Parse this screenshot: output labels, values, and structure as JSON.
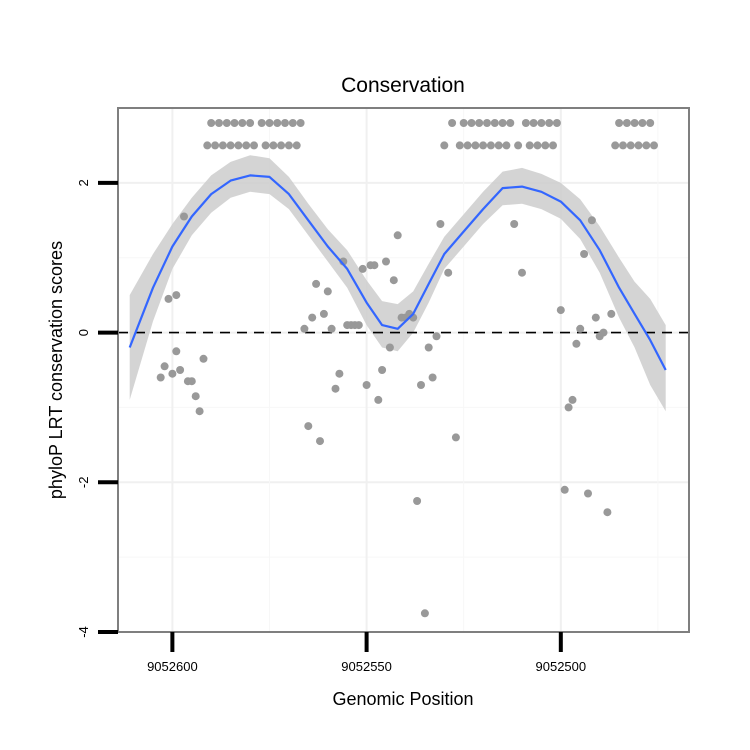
{
  "chart_data": {
    "type": "scatter",
    "title": "Conservation",
    "xlabel": "Genomic Position",
    "ylabel": "phyloP LRT conservation scores",
    "x_axis_reversed": true,
    "xlim": [
      9052614,
      9052467
    ],
    "ylim": [
      -4,
      3
    ],
    "grid": true,
    "x_ticks": [
      {
        "value": 9052600,
        "label": "9052600"
      },
      {
        "value": 9052550,
        "label": "9052550"
      },
      {
        "value": 9052500,
        "label": "9052500"
      }
    ],
    "y_ticks": [
      {
        "value": -4,
        "label": "-4"
      },
      {
        "value": -2,
        "label": "-2"
      },
      {
        "value": 0,
        "label": "0"
      },
      {
        "value": 2,
        "label": "2"
      }
    ],
    "reference_line": {
      "y": 0,
      "style": "dashed"
    },
    "points": {
      "color": "#999999",
      "x": [
        9052603,
        9052602,
        9052601,
        9052600,
        9052599,
        9052599,
        9052598,
        9052597,
        9052596,
        9052595,
        9052594,
        9052593,
        9052592,
        9052591,
        9052590,
        9052589,
        9052588,
        9052587,
        9052586,
        9052585,
        9052584,
        9052583,
        9052582,
        9052581,
        9052580,
        9052579,
        9052577,
        9052576,
        9052575,
        9052574,
        9052573,
        9052572,
        9052571,
        9052570,
        9052569,
        9052568,
        9052567,
        9052566,
        9052565,
        9052564,
        9052563,
        9052562,
        9052561,
        9052560,
        9052559,
        9052558,
        9052557,
        9052556,
        9052555,
        9052554,
        9052553,
        9052552,
        9052551,
        9052550,
        9052549,
        9052548,
        9052547,
        9052546,
        9052545,
        9052544,
        9052543,
        9052542,
        9052541,
        9052540,
        9052539,
        9052538,
        9052537,
        9052536,
        9052535,
        9052534,
        9052533,
        9052532,
        9052531,
        9052530,
        9052529,
        9052528,
        9052527,
        9052526,
        9052525,
        9052524,
        9052523,
        9052522,
        9052521,
        9052520,
        9052519,
        9052518,
        9052517,
        9052516,
        9052515,
        9052514,
        9052513,
        9052512,
        9052511,
        9052510,
        9052509,
        9052508,
        9052507,
        9052506,
        9052505,
        9052504,
        9052503,
        9052502,
        9052501,
        9052500,
        9052499,
        9052498,
        9052497,
        9052496,
        9052495,
        9052494,
        9052493,
        9052492,
        9052491,
        9052490,
        9052489,
        9052488,
        9052487,
        9052486,
        9052485,
        9052484,
        9052483,
        9052482,
        9052481,
        9052480,
        9052479,
        9052478,
        9052477,
        9052476
      ],
      "y": [
        -0.6,
        -0.45,
        0.45,
        -0.55,
        0.5,
        -0.25,
        -0.5,
        1.55,
        -0.65,
        -0.65,
        -0.85,
        -1.05,
        -0.35,
        2.5,
        2.8,
        2.5,
        2.8,
        2.5,
        2.8,
        2.5,
        2.8,
        2.5,
        2.8,
        2.5,
        2.8,
        2.5,
        2.8,
        2.5,
        2.8,
        2.5,
        2.8,
        2.5,
        2.8,
        2.5,
        2.8,
        2.5,
        2.8,
        0.05,
        -1.25,
        0.2,
        0.65,
        -1.45,
        0.25,
        0.55,
        0.05,
        -0.75,
        -0.55,
        0.95,
        0.1,
        0.1,
        0.1,
        0.1,
        0.85,
        -0.7,
        0.9,
        0.9,
        -0.9,
        -0.5,
        0.95,
        -0.2,
        0.7,
        1.3,
        0.2,
        0.2,
        0.25,
        0.2,
        -2.25,
        -0.7,
        -3.75,
        -0.2,
        -0.6,
        -0.05,
        1.45,
        2.5,
        0.8,
        2.8,
        -1.4,
        2.5,
        2.8,
        2.5,
        2.8,
        2.5,
        2.8,
        2.5,
        2.8,
        2.5,
        2.8,
        2.5,
        2.8,
        2.5,
        2.8,
        1.45,
        2.5,
        0.8,
        2.8,
        2.5,
        2.8,
        2.5,
        2.8,
        2.5,
        2.8,
        2.5,
        2.8,
        0.3,
        -2.1,
        -1.0,
        -0.9,
        -0.15,
        0.05,
        1.05,
        -2.15,
        1.5,
        0.2,
        -0.05,
        0.0,
        -2.4,
        0.25,
        2.5,
        2.8,
        2.5,
        2.8,
        2.5,
        2.8,
        2.5,
        2.8,
        2.5,
        2.8,
        2.5
      ]
    },
    "smooth": {
      "color": "#3366FF",
      "band_color": "#cccccc",
      "x": [
        9052611,
        9052605,
        9052600,
        9052595,
        9052590,
        9052585,
        9052580,
        9052575,
        9052570,
        9052565,
        9052560,
        9052555,
        9052550,
        9052546,
        9052542,
        9052538,
        9052534,
        9052530,
        9052525,
        9052520,
        9052515,
        9052510,
        9052505,
        9052500,
        9052495,
        9052490,
        9052485,
        9052481,
        9052477,
        9052473
      ],
      "y": [
        -0.2,
        0.6,
        1.15,
        1.55,
        1.85,
        2.03,
        2.1,
        2.08,
        1.85,
        1.5,
        1.15,
        0.85,
        0.4,
        0.1,
        0.05,
        0.25,
        0.65,
        1.05,
        1.35,
        1.65,
        1.93,
        1.95,
        1.88,
        1.75,
        1.5,
        1.1,
        0.6,
        0.25,
        -0.1,
        -0.5
      ],
      "lower": [
        -0.9,
        0.15,
        0.85,
        1.3,
        1.6,
        1.8,
        1.88,
        1.85,
        1.65,
        1.3,
        0.95,
        0.6,
        0.1,
        -0.2,
        -0.25,
        0.0,
        0.4,
        0.85,
        1.15,
        1.45,
        1.7,
        1.72,
        1.65,
        1.52,
        1.25,
        0.8,
        0.2,
        -0.2,
        -0.7,
        -1.05
      ],
      "upper": [
        0.5,
        1.05,
        1.45,
        1.8,
        2.1,
        2.28,
        2.37,
        2.33,
        2.08,
        1.72,
        1.38,
        1.1,
        0.7,
        0.42,
        0.38,
        0.55,
        0.92,
        1.28,
        1.58,
        1.88,
        2.15,
        2.2,
        2.12,
        2.0,
        1.78,
        1.42,
        1.0,
        0.68,
        0.45,
        0.1
      ]
    }
  }
}
